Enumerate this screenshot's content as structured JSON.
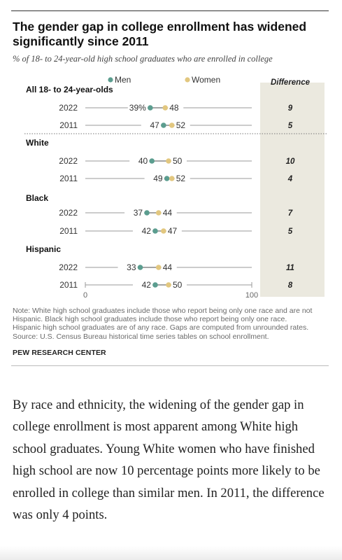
{
  "title": "The gender gap in college enrollment has widened significantly since 2011",
  "subtitle": "% of 18- to 24-year-old high school graduates who are enrolled in college",
  "legend": {
    "men": "Men",
    "women": "Women",
    "difference": "Difference"
  },
  "colors": {
    "men": "#5b9d8f",
    "women": "#e2c77f",
    "line": "#888888",
    "panel": "#ebe9df",
    "text": "#222222"
  },
  "chart_data": {
    "type": "dot_range",
    "xlim": [
      0,
      100
    ],
    "x_ticks": [
      "0",
      "100"
    ],
    "legend_placement": "top",
    "groups": [
      {
        "name": "All 18- to 24-year-olds",
        "rows": [
          {
            "year": "2022",
            "men": 39,
            "women": 48,
            "men_label": "39%",
            "women_label": "48",
            "difference": "9"
          },
          {
            "year": "2011",
            "men": 47,
            "women": 52,
            "men_label": "47",
            "women_label": "52",
            "difference": "5"
          }
        ]
      },
      {
        "name": "White",
        "rows": [
          {
            "year": "2022",
            "men": 40,
            "women": 50,
            "men_label": "40",
            "women_label": "50",
            "difference": "10"
          },
          {
            "year": "2011",
            "men": 49,
            "women": 52,
            "men_label": "49",
            "women_label": "52",
            "difference": "4"
          }
        ]
      },
      {
        "name": "Black",
        "rows": [
          {
            "year": "2022",
            "men": 37,
            "women": 44,
            "men_label": "37",
            "women_label": "44",
            "difference": "7"
          },
          {
            "year": "2011",
            "men": 42,
            "women": 47,
            "men_label": "42",
            "women_label": "47",
            "difference": "5"
          }
        ]
      },
      {
        "name": "Hispanic",
        "rows": [
          {
            "year": "2022",
            "men": 33,
            "women": 44,
            "men_label": "33",
            "women_label": "44",
            "difference": "11"
          },
          {
            "year": "2011",
            "men": 42,
            "women": 50,
            "men_label": "42",
            "women_label": "50",
            "difference": "8"
          }
        ]
      }
    ]
  },
  "note_lines": [
    "Note: White high school graduates include those who report being only one race and are not",
    "Hispanic. Black high school graduates include those who report being only one race.",
    "Hispanic high school graduates are of any race. Gaps are computed from unrounded rates.",
    "Source: U.S. Census Bureau historical time series tables on school enrollment."
  ],
  "source_brand": "PEW RESEARCH CENTER",
  "article_text": "By race and ethnicity, the widening of the gender gap in college enrollment is most apparent among White high school graduates. Young White women who have finished high school are now 10 percentage points more likely to be enrolled in college than similar men. In 2011, the difference was only 4 points."
}
